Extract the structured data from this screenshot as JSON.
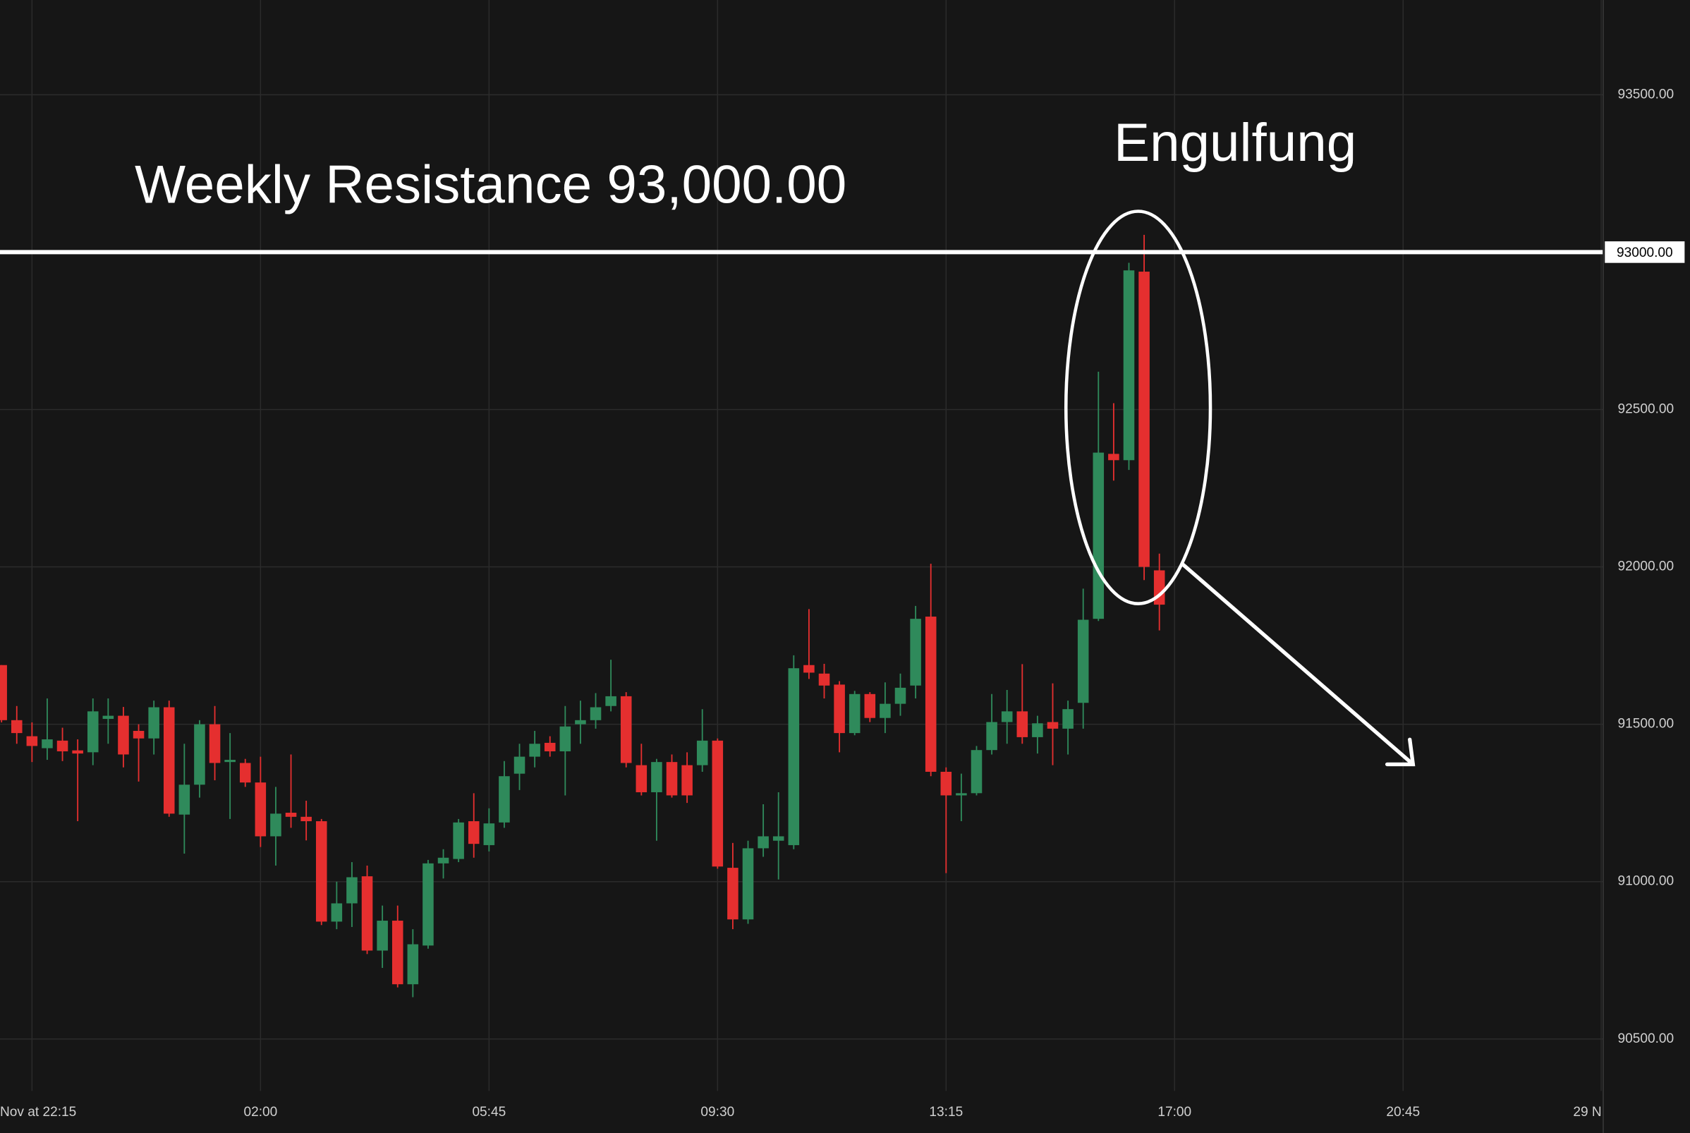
{
  "chart_data": {
    "type": "candlestick",
    "open": [
      91688,
      91513,
      91462,
      91424,
      91448,
      91417,
      91411,
      91517,
      91527,
      91479,
      91455,
      91554,
      91213,
      91308,
      91500,
      91380,
      91377,
      91315,
      91144,
      91219,
      91206,
      91192,
      90873,
      90931,
      91017,
      90781,
      90876,
      90674,
      90797,
      91058,
      91072,
      91192,
      91116,
      91188,
      91343,
      91397,
      91441,
      91414,
      91500,
      91513,
      91558,
      91589,
      91370,
      91284,
      91380,
      91370,
      91370,
      91448,
      91044,
      90880,
      91106,
      91130,
      91116,
      91688,
      91661,
      91626,
      91472,
      91596,
      91520,
      91565,
      91623,
      91842,
      91349,
      91274,
      91281,
      91418,
      91507,
      91541,
      91459,
      91507,
      91486,
      91568,
      91835,
      92359,
      92339,
      92938,
      91989
    ],
    "high": [
      91688,
      91558,
      91506,
      91582,
      91489,
      91452,
      91582,
      91582,
      91555,
      91500,
      91575,
      91575,
      91438,
      91513,
      91558,
      91472,
      91390,
      91397,
      91301,
      91404,
      91257,
      91199,
      91000,
      91062,
      91051,
      90924,
      90924,
      90849,
      91069,
      91103,
      91199,
      91281,
      91233,
      91383,
      91438,
      91479,
      91462,
      91558,
      91575,
      91599,
      91705,
      91602,
      91438,
      91390,
      91404,
      91411,
      91548,
      91455,
      91123,
      91130,
      91246,
      91284,
      91719,
      91866,
      91692,
      91637,
      91606,
      91602,
      91633,
      91661,
      91876,
      92010,
      91363,
      91343,
      91431,
      91596,
      91609,
      91691,
      91527,
      91630,
      91575,
      91931,
      92620,
      92520,
      92966,
      93055,
      92042
    ],
    "low": [
      91506,
      91438,
      91380,
      91387,
      91383,
      91192,
      91370,
      91438,
      91363,
      91318,
      91404,
      91206,
      91089,
      91267,
      91322,
      91199,
      91301,
      91110,
      91051,
      91171,
      91131,
      90862,
      90849,
      90856,
      90770,
      90726,
      90664,
      90633,
      90787,
      91010,
      91062,
      91076,
      91096,
      91171,
      91291,
      91363,
      91397,
      91274,
      91438,
      91486,
      91541,
      91363,
      91274,
      91130,
      91267,
      91250,
      91349,
      91041,
      90849,
      90866,
      91079,
      91007,
      91103,
      91644,
      91582,
      91411,
      91465,
      91507,
      91472,
      91527,
      91582,
      91335,
      91027,
      91192,
      91274,
      91404,
      91438,
      91438,
      91407,
      91370,
      91404,
      91486,
      91828,
      92274,
      92308,
      91958,
      91798
    ],
    "close": [
      91513,
      91472,
      91431,
      91452,
      91414,
      91407,
      91541,
      91527,
      91404,
      91455,
      91554,
      91216,
      91308,
      91500,
      91377,
      91387,
      91315,
      91144,
      91216,
      91206,
      91192,
      90873,
      90931,
      91014,
      90781,
      90876,
      90674,
      90801,
      91058,
      91076,
      91188,
      91120,
      91185,
      91335,
      91397,
      91438,
      91414,
      91493,
      91513,
      91554,
      91589,
      91377,
      91284,
      91380,
      91274,
      91274,
      91448,
      91048,
      90880,
      91106,
      91144,
      91144,
      91678,
      91664,
      91623,
      91472,
      91596,
      91520,
      91565,
      91616,
      91835,
      91349,
      91274,
      91281,
      91418,
      91507,
      91541,
      91459,
      91503,
      91486,
      91548,
      91832,
      92363,
      92339,
      92942,
      92000,
      91880
    ],
    "up_color": "#2f8a5b",
    "down_color": "#e52f2f",
    "xlim": [
      -0.1,
      105.1
    ],
    "xticks": [
      {
        "value": 2,
        "label": "Nov at 22:15"
      },
      {
        "value": 17,
        "label": "02:00"
      },
      {
        "value": 32,
        "label": "05:45"
      },
      {
        "value": 47,
        "label": "09:30"
      },
      {
        "value": 62,
        "label": "13:15"
      },
      {
        "value": 77,
        "label": "17:00"
      },
      {
        "value": 92,
        "label": "20:45"
      },
      {
        "value": 105,
        "label": "29 N"
      }
    ],
    "ylim": [
      90335,
      93801
    ],
    "yticks": [
      {
        "value": 90500,
        "label": "90500.00"
      },
      {
        "value": 91000,
        "label": "91000.00"
      },
      {
        "value": 91500,
        "label": "91500.00"
      },
      {
        "value": 92000,
        "label": "92000.00"
      },
      {
        "value": 92500,
        "label": "92500.00"
      },
      {
        "value": 93500,
        "label": "93500.00"
      }
    ],
    "grid": true,
    "resistance": {
      "value": 93000,
      "label": "93000.00",
      "text": "Weekly Resistance 93,000.00"
    },
    "annotation": "Engulfung"
  }
}
